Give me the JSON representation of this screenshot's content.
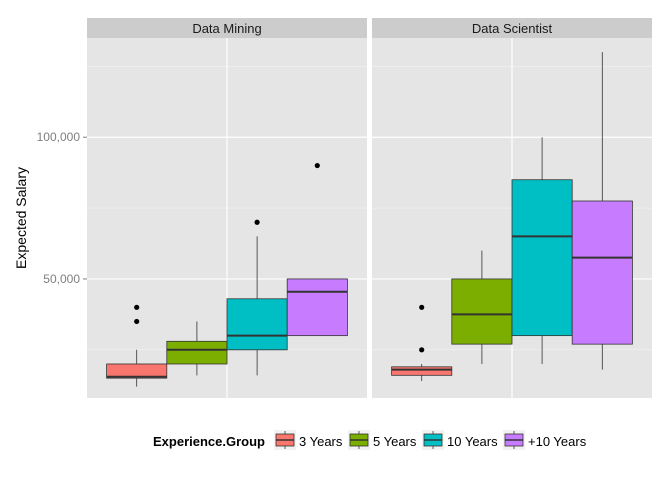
{
  "chart_data": {
    "type": "boxplot",
    "ylabel": "Expected Salary",
    "ylim": [
      8000,
      135000
    ],
    "yticks": [
      {
        "value": 50000,
        "label": "50,000"
      },
      {
        "value": 100000,
        "label": "100,000"
      }
    ],
    "grid": true,
    "legend": {
      "position": "bottom",
      "title": "Experience.Group",
      "entries": [
        {
          "label": "3 Years",
          "color": "#F8766D"
        },
        {
          "label": "5 Years",
          "color": "#7CAE00"
        },
        {
          "label": "10 Years",
          "color": "#00BFC4"
        },
        {
          "label": "+10 Years",
          "color": "#C77CFF"
        }
      ]
    },
    "panels": [
      {
        "title": "Data Mining",
        "boxes": [
          {
            "group": "3 Years",
            "min": 12000,
            "q1": 15000,
            "median": 15500,
            "q3": 20000,
            "max": 25000,
            "outliers": [
              35000,
              40000
            ]
          },
          {
            "group": "5 Years",
            "min": 16000,
            "q1": 20000,
            "median": 25000,
            "q3": 28000,
            "max": 35000,
            "outliers": []
          },
          {
            "group": "10 Years",
            "min": 16000,
            "q1": 25000,
            "median": 30000,
            "q3": 43000,
            "max": 65000,
            "outliers": [
              70000
            ]
          },
          {
            "group": "+10 Years",
            "min": 30000,
            "q1": 30000,
            "median": 45500,
            "q3": 50000,
            "max": 50000,
            "outliers": [
              90000
            ]
          }
        ]
      },
      {
        "title": "Data Scientist",
        "boxes": [
          {
            "group": "3 Years",
            "min": 14000,
            "q1": 16000,
            "median": 18000,
            "q3": 19000,
            "max": 20000,
            "outliers": [
              25000,
              40000
            ]
          },
          {
            "group": "5 Years",
            "min": 20000,
            "q1": 27000,
            "median": 37500,
            "q3": 50000,
            "max": 60000,
            "outliers": []
          },
          {
            "group": "10 Years",
            "min": 20000,
            "q1": 30000,
            "median": 65000,
            "q3": 85000,
            "max": 100000,
            "outliers": []
          },
          {
            "group": "+10 Years",
            "min": 18000,
            "q1": 27000,
            "median": 57500,
            "q3": 77500,
            "max": 130000,
            "outliers": []
          }
        ]
      }
    ]
  }
}
